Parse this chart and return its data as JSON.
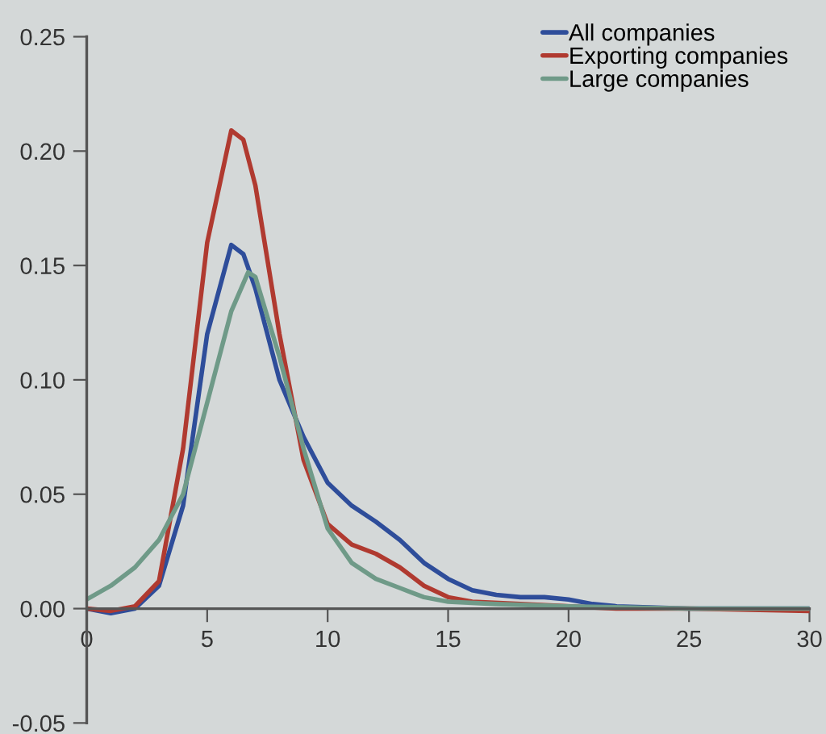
{
  "chart_data": {
    "type": "line",
    "xlim": [
      0,
      30
    ],
    "ylim": [
      -0.05,
      0.25
    ],
    "xticks": [
      0,
      5,
      10,
      15,
      20,
      25,
      30
    ],
    "yticks": [
      {
        "value": -0.05,
        "label": "-0.05"
      },
      {
        "value": 0,
        "label": "0.00"
      },
      {
        "value": 0.05,
        "label": "0.05"
      },
      {
        "value": 0.1,
        "label": "0.10"
      },
      {
        "value": 0.15,
        "label": "0.15"
      },
      {
        "value": 0.2,
        "label": "0.20"
      },
      {
        "value": 0.25,
        "label": "0.25"
      }
    ],
    "grid": false,
    "legend": "top right",
    "marker": "none",
    "line_style": "solid",
    "series": [
      {
        "name": "All companies",
        "color": "#2e4d9a",
        "x": [
          0,
          1,
          2,
          3,
          4,
          5,
          6,
          6.5,
          7,
          8,
          9,
          10,
          11,
          12,
          13,
          14,
          15,
          16,
          17,
          18,
          19,
          20,
          21,
          22,
          25,
          30
        ],
        "values": [
          0,
          -0.002,
          0,
          0.01,
          0.045,
          0.12,
          0.159,
          0.155,
          0.14,
          0.1,
          0.075,
          0.055,
          0.045,
          0.038,
          0.03,
          0.02,
          0.013,
          0.008,
          0.006,
          0.005,
          0.005,
          0.004,
          0.002,
          0.001,
          0,
          0
        ]
      },
      {
        "name": "Exporting companies",
        "color": "#b03a30",
        "x": [
          0,
          1,
          2,
          3,
          4,
          5,
          6,
          6.5,
          7,
          8,
          9,
          10,
          11,
          12,
          13,
          14,
          15,
          16,
          18,
          22,
          25,
          30
        ],
        "values": [
          0,
          -0.001,
          0.001,
          0.012,
          0.07,
          0.16,
          0.209,
          0.205,
          0.185,
          0.12,
          0.065,
          0.037,
          0.028,
          0.024,
          0.018,
          0.01,
          0.005,
          0.003,
          0.002,
          0,
          0,
          -0.001
        ]
      },
      {
        "name": "Large companies",
        "color": "#6f9a88",
        "x": [
          0,
          1,
          2,
          3,
          4,
          5,
          6,
          6.7,
          7,
          8,
          9,
          10,
          11,
          12,
          13,
          14,
          15,
          17,
          20,
          25,
          30
        ],
        "values": [
          0.004,
          0.01,
          0.018,
          0.03,
          0.05,
          0.09,
          0.13,
          0.147,
          0.145,
          0.11,
          0.07,
          0.035,
          0.02,
          0.013,
          0.009,
          0.005,
          0.003,
          0.002,
          0.001,
          0,
          0
        ]
      }
    ]
  }
}
